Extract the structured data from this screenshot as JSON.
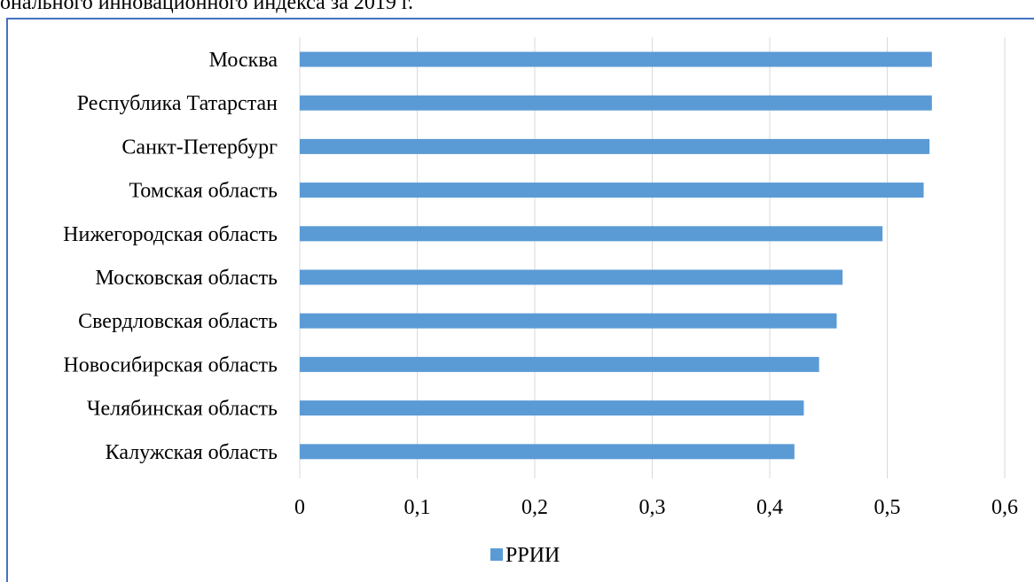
{
  "caption_fragment": "онального инновационного индекса за 2019 г.",
  "colors": {
    "bar": "#5b9bd5",
    "grid": "#d9d9d9",
    "frame": "#4472c4",
    "text": "#000000"
  },
  "chart_data": {
    "type": "bar",
    "orientation": "horizontal",
    "categories": [
      "Москва",
      "Республика Татарстан",
      "Санкт-Петербург",
      "Томская область",
      "Нижегородская область",
      "Московская область",
      "Свердловская область",
      "Новосибирская область",
      "Челябинская область",
      "Калужская область"
    ],
    "series": [
      {
        "name": "РРИИ",
        "values": [
          0.538,
          0.538,
          0.536,
          0.531,
          0.496,
          0.462,
          0.457,
          0.442,
          0.429,
          0.421
        ]
      }
    ],
    "xlim": [
      0,
      0.6
    ],
    "xticks": [
      0,
      0.1,
      0.2,
      0.3,
      0.4,
      0.5,
      0.6
    ],
    "xtick_labels": [
      "0",
      "0,1",
      "0,2",
      "0,3",
      "0,4",
      "0,5",
      "0,6"
    ],
    "grid": true,
    "legend_position": "bottom-center",
    "title": "",
    "xlabel": "",
    "ylabel": ""
  }
}
